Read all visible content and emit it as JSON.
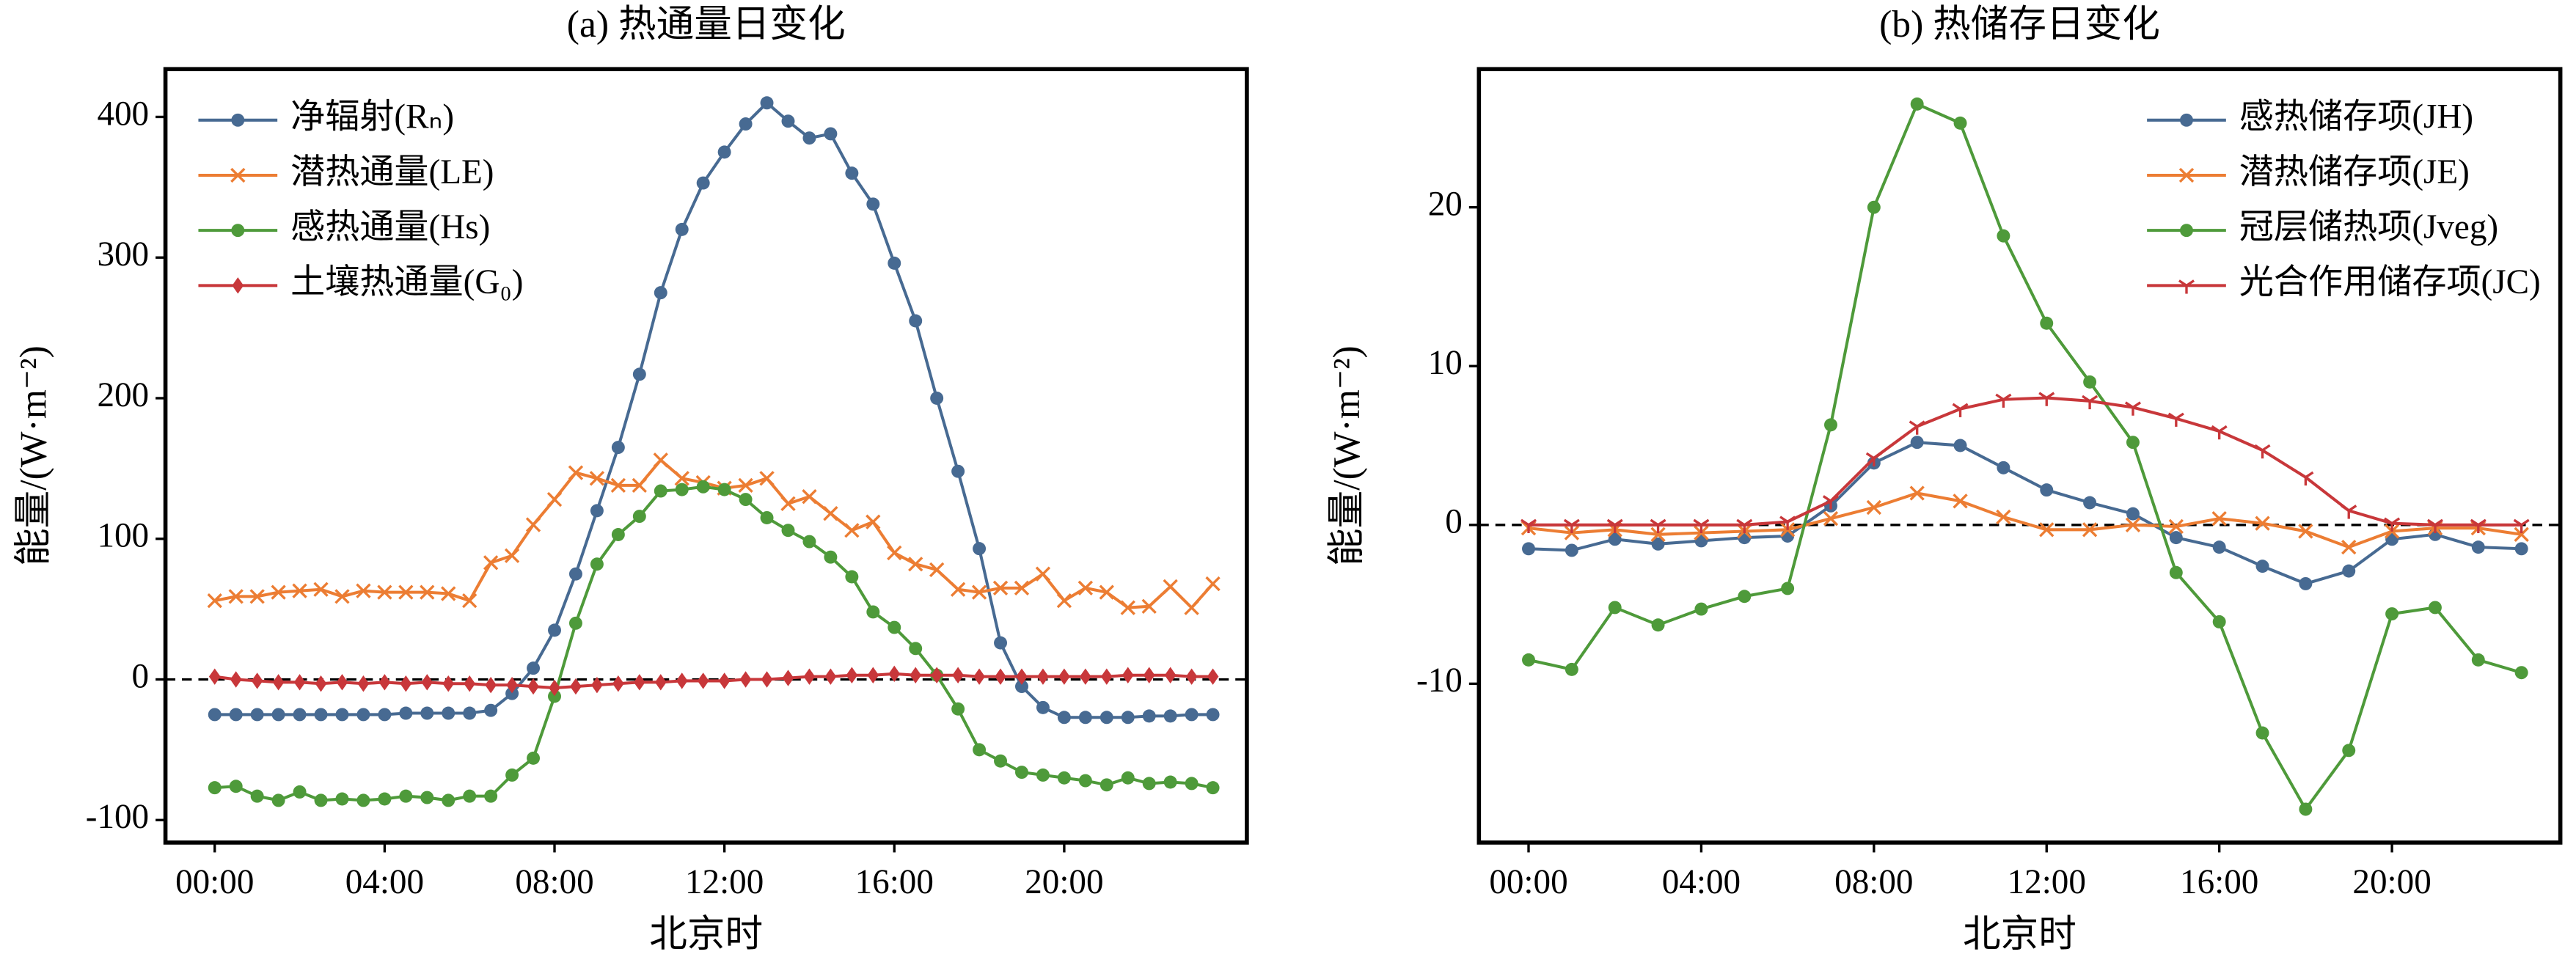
{
  "chart_data": [
    {
      "type": "line",
      "title": "(a) 热通量日变化",
      "xlabel": "北京时",
      "ylabel": "能量/(W·m⁻²)",
      "x": [
        0,
        0.5,
        1,
        1.5,
        2,
        2.5,
        3,
        3.5,
        4,
        4.5,
        5,
        5.5,
        6,
        6.5,
        7,
        7.5,
        8,
        8.5,
        9,
        9.5,
        10,
        10.5,
        11,
        11.5,
        12,
        12.5,
        13,
        13.5,
        14,
        14.5,
        15,
        15.5,
        16,
        16.5,
        17,
        17.5,
        18,
        18.5,
        19,
        19.5,
        20,
        20.5,
        21,
        21.5,
        22,
        22.5,
        23,
        23.5
      ],
      "series": [
        {
          "name": "净辐射(Rₙ)",
          "color": "#476a92",
          "marker": "circle",
          "values": [
            -25,
            -25,
            -25,
            -25,
            -25,
            -25,
            -25,
            -25,
            -25,
            -24,
            -24,
            -24,
            -24,
            -22,
            -10,
            8,
            35,
            75,
            120,
            165,
            217,
            275,
            320,
            353,
            375,
            395,
            410,
            397,
            385,
            388,
            360,
            338,
            296,
            255,
            200,
            148,
            93,
            26,
            -5,
            -20,
            -27,
            -27,
            -27,
            -27,
            -26,
            -26,
            -25,
            -25
          ]
        },
        {
          "name": "潜热通量(LE)",
          "color": "#ec7d33",
          "marker": "x",
          "values": [
            56,
            59,
            59,
            62,
            63,
            64,
            59,
            63,
            62,
            62,
            62,
            61,
            56,
            83,
            88,
            110,
            128,
            147,
            143,
            138,
            138,
            156,
            143,
            140,
            136,
            138,
            143,
            125,
            130,
            118,
            106,
            112,
            90,
            82,
            78,
            64,
            62,
            65,
            65,
            75,
            56,
            65,
            62,
            51,
            52,
            66,
            51,
            68
          ]
        },
        {
          "name": "感热通量(Hs)",
          "color": "#4e9a3a",
          "marker": "circle",
          "values": [
            -77,
            -76,
            -83,
            -86,
            -80,
            -86,
            -85,
            -86,
            -85,
            -83,
            -84,
            -86,
            -83,
            -83,
            -68,
            -56,
            -12,
            40,
            82,
            103,
            116,
            134,
            135,
            137,
            135,
            128,
            115,
            106,
            98,
            87,
            73,
            48,
            37,
            22,
            3,
            -21,
            -50,
            -58,
            -66,
            -68,
            -70,
            -72,
            -75,
            -70,
            -74,
            -73,
            -74,
            -77
          ]
        },
        {
          "name": "土壤热通量(G₀)",
          "color": "#c8373a",
          "marker": "diamond",
          "values": [
            2,
            0,
            -1,
            -2,
            -2,
            -3,
            -2,
            -3,
            -2,
            -3,
            -2,
            -3,
            -3,
            -4,
            -4,
            -5,
            -6,
            -5,
            -4,
            -3,
            -2,
            -2,
            -1,
            -1,
            -1,
            0,
            0,
            1,
            2,
            2,
            3,
            3,
            4,
            3,
            3,
            3,
            2,
            2,
            2,
            2,
            2,
            2,
            2,
            3,
            3,
            3,
            2,
            2
          ]
        }
      ],
      "xlim": [
        -1.16,
        24.3
      ],
      "xticks": [
        {
          "value": 0,
          "label": "00:00"
        },
        {
          "value": 4,
          "label": "04:00"
        },
        {
          "value": 8,
          "label": "08:00"
        },
        {
          "value": 12,
          "label": "12:00"
        },
        {
          "value": 16,
          "label": "16:00"
        },
        {
          "value": 20,
          "label": "20:00"
        }
      ],
      "ylim": [
        -116,
        434
      ],
      "yticks": [
        -100,
        0,
        100,
        200,
        300,
        400
      ],
      "hline": 0,
      "legend": "upper left"
    },
    {
      "type": "line",
      "title": "(b) 热储存日变化",
      "xlabel": "北京时",
      "ylabel": "能量/(W·m⁻²)",
      "x": [
        0,
        1,
        2,
        3,
        4,
        5,
        6,
        7,
        8,
        9,
        10,
        11,
        12,
        13,
        14,
        15,
        16,
        17,
        18,
        19,
        20,
        21,
        22,
        23
      ],
      "series": [
        {
          "name": "感热储存项(JH)",
          "color": "#476a92",
          "marker": "circle",
          "values": [
            -1.5,
            -1.6,
            -0.9,
            -1.2,
            -1.0,
            -0.8,
            -0.7,
            1.2,
            3.9,
            5.2,
            5.0,
            3.6,
            2.2,
            1.4,
            0.7,
            -0.8,
            -1.4,
            -2.6,
            -3.7,
            -2.9,
            -0.9,
            -0.6,
            -1.4,
            -1.5
          ]
        },
        {
          "name": "潜热储存项(JE)",
          "color": "#ec7d33",
          "marker": "x",
          "values": [
            -0.2,
            -0.5,
            -0.3,
            -0.6,
            -0.5,
            -0.4,
            -0.3,
            0.4,
            1.1,
            2.0,
            1.5,
            0.5,
            -0.3,
            -0.3,
            0.0,
            -0.1,
            0.4,
            0.1,
            -0.4,
            -1.4,
            -0.4,
            -0.2,
            -0.2,
            -0.6
          ]
        },
        {
          "name": "冠层储热项(Jveg)",
          "color": "#4e9a3a",
          "marker": "circle",
          "values": [
            -8.5,
            -9.1,
            -5.2,
            -6.3,
            -5.3,
            -4.5,
            -4.0,
            6.3,
            20.0,
            26.5,
            25.3,
            18.2,
            12.7,
            9.0,
            5.2,
            -3.0,
            -6.1,
            -13.1,
            -17.9,
            -14.2,
            -5.6,
            -5.2,
            -8.5,
            -9.3
          ]
        },
        {
          "name": "光合作用储存项(JC)",
          "color": "#c8373a",
          "marker": "tri",
          "values": [
            0,
            0,
            0,
            0,
            0,
            0,
            0.2,
            1.5,
            4.2,
            6.2,
            7.3,
            7.9,
            8.0,
            7.8,
            7.4,
            6.7,
            5.9,
            4.7,
            3.0,
            0.9,
            0.1,
            0,
            0,
            0
          ]
        }
      ],
      "xlim": [
        -1.15,
        23.9
      ],
      "xticks": [
        {
          "value": 0,
          "label": "00:00"
        },
        {
          "value": 4,
          "label": "04:00"
        },
        {
          "value": 8,
          "label": "08:00"
        },
        {
          "value": 12,
          "label": "12:00"
        },
        {
          "value": 16,
          "label": "16:00"
        },
        {
          "value": 20,
          "label": "20:00"
        }
      ],
      "ylim": [
        -20,
        28.7
      ],
      "yticks": [
        -10,
        0,
        10,
        20
      ],
      "hline": 0,
      "legend": "upper right"
    }
  ]
}
